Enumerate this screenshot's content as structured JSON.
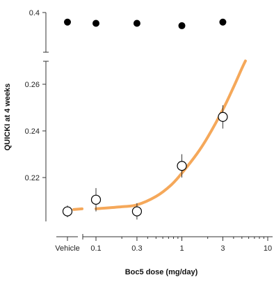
{
  "chart_data": {
    "type": "scatter",
    "xlabel": "Boc5 dose (mg/day)",
    "ylabel": "QUICKI at 4 weeks",
    "x_scale": "log",
    "x_ticks": [
      "0.1",
      "0.3",
      "1",
      "3",
      "10"
    ],
    "x_tick_values": [
      0.1,
      0.3,
      1,
      3,
      10
    ],
    "x_category_label": "Vehicle",
    "y_ticks_lower": [
      "0.22",
      "0.24",
      "0.26"
    ],
    "y_ticks_lower_values": [
      0.22,
      0.24,
      0.26
    ],
    "y_tick_upper": "0.4",
    "y_tick_upper_value": 0.4,
    "ylim_lower": [
      0.202,
      0.27
    ],
    "ylim_upper": [
      0.37,
      0.4
    ],
    "grid": false,
    "series": [
      {
        "marker": "filled-circle",
        "color": "#000000",
        "points": [
          {
            "x": "Vehicle",
            "y": 0.392
          },
          {
            "x": 0.1,
            "y": 0.391
          },
          {
            "x": 0.3,
            "y": 0.391
          },
          {
            "x": 1,
            "y": 0.389
          },
          {
            "x": 3,
            "y": 0.392
          }
        ]
      },
      {
        "marker": "open-circle",
        "color": "#000000",
        "points": [
          {
            "x": "Vehicle",
            "y": 0.2055,
            "err": 0.0025
          },
          {
            "x": 0.1,
            "y": 0.2105,
            "err": 0.005
          },
          {
            "x": 0.3,
            "y": 0.2055,
            "err": 0.0035
          },
          {
            "x": 1,
            "y": 0.225,
            "err": 0.005
          },
          {
            "x": 3,
            "y": 0.246,
            "err": 0.005
          }
        ]
      }
    ],
    "fit_curve": {
      "color": "#f5a85a",
      "vehicle_y": 0.2063,
      "points": [
        {
          "x": 0.1,
          "y": 0.2066
        },
        {
          "x": 0.2,
          "y": 0.2075
        },
        {
          "x": 0.3,
          "y": 0.2083
        },
        {
          "x": 0.5,
          "y": 0.2119
        },
        {
          "x": 0.75,
          "y": 0.2168
        },
        {
          "x": 1,
          "y": 0.2219
        },
        {
          "x": 1.5,
          "y": 0.2302
        },
        {
          "x": 2,
          "y": 0.2373
        },
        {
          "x": 3,
          "y": 0.2491
        },
        {
          "x": 4,
          "y": 0.2588
        },
        {
          "x": 5,
          "y": 0.2668
        },
        {
          "x": 5.5,
          "y": 0.27
        }
      ]
    }
  }
}
